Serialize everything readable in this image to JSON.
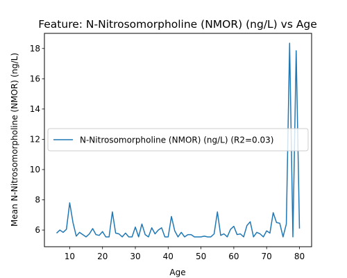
{
  "chart_data": {
    "type": "line",
    "title": "Feature: N-Nitrosomorpholine (NMOR) (ng/L) vs Age",
    "xlabel": "Age",
    "ylabel": "Mean N-Nitrosomorpholine (NMOR) (ng/L)",
    "xlim": [
      2.3,
      83.7
    ],
    "ylim": [
      4.9,
      19.0
    ],
    "xticks": [
      10,
      20,
      30,
      40,
      50,
      60,
      70,
      80
    ],
    "yticks": [
      6,
      8,
      10,
      12,
      14,
      16,
      18
    ],
    "grid": false,
    "legend_position": "center-left",
    "series": [
      {
        "name": "N-Nitrosomorpholine (NMOR) (ng/L) (R2=0.03)",
        "color": "#1f77b4",
        "x": [
          6,
          7,
          8,
          9,
          10,
          11,
          12,
          13,
          14,
          15,
          16,
          17,
          18,
          19,
          20,
          21,
          22,
          23,
          24,
          25,
          26,
          27,
          28,
          29,
          30,
          31,
          32,
          33,
          34,
          35,
          36,
          37,
          38,
          39,
          40,
          41,
          42,
          43,
          44,
          45,
          46,
          47,
          48,
          49,
          50,
          51,
          52,
          53,
          54,
          55,
          56,
          57,
          58,
          59,
          60,
          61,
          62,
          63,
          64,
          65,
          66,
          67,
          68,
          69,
          70,
          71,
          72,
          73,
          74,
          75,
          76,
          77,
          78,
          79,
          80
        ],
        "y": [
          5.8,
          6.0,
          5.85,
          6.05,
          7.8,
          6.5,
          5.6,
          5.85,
          5.7,
          5.55,
          5.75,
          6.1,
          5.7,
          5.65,
          5.9,
          5.55,
          5.55,
          7.2,
          5.8,
          5.75,
          5.55,
          5.8,
          5.55,
          5.55,
          6.2,
          5.55,
          6.4,
          5.7,
          5.55,
          6.15,
          5.75,
          6.0,
          6.15,
          5.55,
          5.55,
          6.9,
          5.95,
          5.55,
          5.85,
          5.55,
          5.7,
          5.7,
          5.55,
          5.55,
          5.55,
          5.6,
          5.55,
          5.55,
          5.75,
          7.2,
          5.65,
          5.75,
          5.55,
          6.05,
          6.25,
          5.7,
          5.75,
          5.55,
          6.3,
          6.55,
          5.55,
          5.85,
          5.75,
          5.55,
          5.95,
          5.8,
          7.15,
          6.5,
          6.45,
          5.55,
          6.4,
          18.35,
          5.55,
          17.85,
          6.1
        ]
      }
    ]
  }
}
